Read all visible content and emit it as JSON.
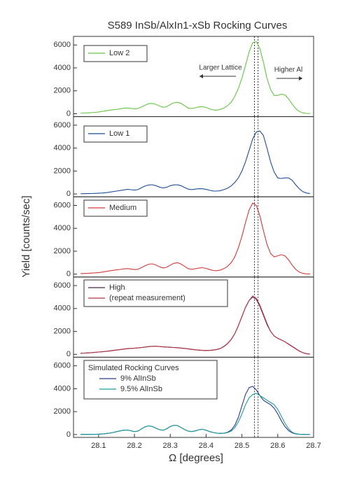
{
  "chart_data": [
    {
      "type": "line",
      "title": "S589 InSb/AlxIn1-xSb Rocking Curves",
      "ylabel": "Yield [counts/sec]",
      "annotations": [
        "Larger Lattice",
        "Higher Al"
      ],
      "xlim": [
        28.03,
        28.7
      ],
      "ylim": [
        -250,
        6750
      ],
      "yticks": [
        0,
        2000,
        4000,
        6000
      ],
      "vlines": [
        28.535,
        28.545
      ],
      "x": [
        28.05,
        28.06,
        28.07,
        28.08,
        28.09,
        28.1,
        28.11,
        28.12,
        28.13,
        28.14,
        28.15,
        28.16,
        28.17,
        28.18,
        28.19,
        28.2,
        28.21,
        28.22,
        28.23,
        28.24,
        28.25,
        28.26,
        28.27,
        28.28,
        28.29,
        28.3,
        28.31,
        28.32,
        28.33,
        28.34,
        28.35,
        28.36,
        28.37,
        28.38,
        28.39,
        28.4,
        28.41,
        28.42,
        28.43,
        28.44,
        28.45,
        28.46,
        28.47,
        28.48,
        28.49,
        28.5,
        28.51,
        28.52,
        28.53,
        28.54,
        28.55,
        28.56,
        28.57,
        28.58,
        28.59,
        28.6,
        28.61,
        28.62,
        28.63,
        28.64,
        28.65,
        28.66,
        28.67,
        28.68,
        28.69
      ],
      "series": [
        {
          "name": "Low 2",
          "color": "#66c447",
          "values": [
            50,
            60,
            80,
            100,
            120,
            150,
            200,
            250,
            300,
            350,
            380,
            420,
            480,
            500,
            470,
            420,
            450,
            600,
            750,
            880,
            900,
            820,
            680,
            560,
            620,
            800,
            950,
            1000,
            900,
            700,
            500,
            450,
            520,
            600,
            620,
            550,
            420,
            330,
            320,
            380,
            500,
            700,
            1000,
            1500,
            2200,
            3100,
            4200,
            5400,
            6200,
            6300,
            5700,
            4500,
            3100,
            2100,
            1600,
            1600,
            1700,
            1650,
            1300,
            850,
            450,
            200,
            80,
            30,
            10
          ]
        }
      ]
    },
    {
      "type": "line",
      "xlim": [
        28.03,
        28.7
      ],
      "ylim": [
        -250,
        6750
      ],
      "yticks": [
        0,
        2000,
        4000,
        6000
      ],
      "vlines": [
        28.535,
        28.545
      ],
      "x": [
        28.05,
        28.06,
        28.07,
        28.08,
        28.09,
        28.1,
        28.11,
        28.12,
        28.13,
        28.14,
        28.15,
        28.16,
        28.17,
        28.18,
        28.19,
        28.2,
        28.21,
        28.22,
        28.23,
        28.24,
        28.25,
        28.26,
        28.27,
        28.28,
        28.29,
        28.3,
        28.31,
        28.32,
        28.33,
        28.34,
        28.35,
        28.36,
        28.37,
        28.38,
        28.39,
        28.4,
        28.41,
        28.42,
        28.43,
        28.44,
        28.45,
        28.46,
        28.47,
        28.48,
        28.49,
        28.5,
        28.51,
        28.52,
        28.53,
        28.54,
        28.55,
        28.56,
        28.57,
        28.58,
        28.59,
        28.6,
        28.61,
        28.62,
        28.63,
        28.64,
        28.65,
        28.66,
        28.67,
        28.68,
        28.69
      ],
      "series": [
        {
          "name": "Low 1",
          "color": "#1f4e96",
          "values": [
            20,
            25,
            30,
            40,
            50,
            60,
            80,
            110,
            150,
            200,
            250,
            300,
            350,
            400,
            370,
            330,
            380,
            550,
            700,
            780,
            800,
            720,
            600,
            520,
            580,
            720,
            790,
            800,
            720,
            560,
            420,
            380,
            420,
            460,
            450,
            400,
            320,
            260,
            250,
            290,
            380,
            500,
            700,
            1000,
            1400,
            2000,
            2800,
            3800,
            4800,
            5400,
            5500,
            5100,
            4000,
            2800,
            1900,
            1400,
            1350,
            1400,
            1400,
            1200,
            800,
            450,
            200,
            80,
            30
          ]
        }
      ]
    },
    {
      "type": "line",
      "xlim": [
        28.03,
        28.7
      ],
      "ylim": [
        -250,
        6750
      ],
      "yticks": [
        0,
        2000,
        4000,
        6000
      ],
      "vlines": [
        28.535,
        28.545
      ],
      "x": [
        28.05,
        28.06,
        28.07,
        28.08,
        28.09,
        28.1,
        28.11,
        28.12,
        28.13,
        28.14,
        28.15,
        28.16,
        28.17,
        28.18,
        28.19,
        28.2,
        28.21,
        28.22,
        28.23,
        28.24,
        28.25,
        28.26,
        28.27,
        28.28,
        28.29,
        28.3,
        28.31,
        28.32,
        28.33,
        28.34,
        28.35,
        28.36,
        28.37,
        28.38,
        28.39,
        28.4,
        28.41,
        28.42,
        28.43,
        28.44,
        28.45,
        28.46,
        28.47,
        28.48,
        28.49,
        28.5,
        28.51,
        28.52,
        28.53,
        28.54,
        28.55,
        28.56,
        28.57,
        28.58,
        28.59,
        28.6,
        28.61,
        28.62,
        28.63,
        28.64,
        28.65,
        28.66,
        28.67,
        28.68,
        28.69
      ],
      "series": [
        {
          "name": "Medium",
          "color": "#d03a3a",
          "values": [
            50,
            60,
            70,
            90,
            110,
            140,
            180,
            230,
            280,
            330,
            370,
            410,
            460,
            480,
            450,
            400,
            430,
            580,
            740,
            870,
            900,
            800,
            650,
            540,
            600,
            790,
            940,
            1000,
            880,
            680,
            480,
            420,
            470,
            540,
            560,
            500,
            400,
            320,
            300,
            360,
            480,
            680,
            1000,
            1500,
            2300,
            3300,
            4500,
            5600,
            6200,
            6000,
            5100,
            3800,
            2600,
            1800,
            1500,
            1600,
            1700,
            1600,
            1250,
            800,
            420,
            180,
            70,
            25,
            10
          ]
        }
      ]
    },
    {
      "type": "line",
      "xlim": [
        28.03,
        28.7
      ],
      "ylim": [
        -250,
        6750
      ],
      "yticks": [
        0,
        2000,
        4000,
        6000
      ],
      "vlines": [
        28.535,
        28.545
      ],
      "x": [
        28.05,
        28.06,
        28.07,
        28.08,
        28.09,
        28.1,
        28.11,
        28.12,
        28.13,
        28.14,
        28.15,
        28.16,
        28.17,
        28.18,
        28.19,
        28.2,
        28.21,
        28.22,
        28.23,
        28.24,
        28.25,
        28.26,
        28.27,
        28.28,
        28.29,
        28.3,
        28.31,
        28.32,
        28.33,
        28.34,
        28.35,
        28.36,
        28.37,
        28.38,
        28.39,
        28.4,
        28.41,
        28.42,
        28.43,
        28.44,
        28.45,
        28.46,
        28.47,
        28.48,
        28.49,
        28.5,
        28.51,
        28.52,
        28.53,
        28.54,
        28.55,
        28.56,
        28.57,
        28.58,
        28.59,
        28.6,
        28.61,
        28.62,
        28.63,
        28.64,
        28.65,
        28.66,
        28.67,
        28.68,
        28.69
      ],
      "series": [
        {
          "name": "High",
          "color": "#4a2848",
          "values": [
            100,
            110,
            130,
            150,
            180,
            200,
            230,
            260,
            300,
            340,
            380,
            420,
            460,
            500,
            520,
            540,
            560,
            600,
            640,
            680,
            700,
            700,
            690,
            660,
            640,
            620,
            600,
            580,
            550,
            520,
            480,
            440,
            400,
            370,
            350,
            340,
            350,
            380,
            430,
            520,
            700,
            950,
            1300,
            1800,
            2500,
            3300,
            4100,
            4700,
            5000,
            4800,
            4200,
            3400,
            2600,
            2000,
            1600,
            1400,
            1250,
            1100,
            900,
            700,
            500,
            300,
            150,
            60,
            20
          ]
        },
        {
          "name": "(repeat measurement)",
          "color": "#b83545",
          "values": [
            90,
            110,
            120,
            150,
            170,
            200,
            220,
            260,
            290,
            330,
            370,
            410,
            450,
            490,
            510,
            530,
            560,
            590,
            630,
            670,
            690,
            700,
            680,
            650,
            630,
            610,
            590,
            570,
            540,
            510,
            470,
            430,
            400,
            360,
            340,
            330,
            340,
            370,
            420,
            510,
            680,
            930,
            1300,
            1800,
            2500,
            3300,
            4100,
            4700,
            5100,
            4900,
            4300,
            3500,
            2700,
            2000,
            1600,
            1400,
            1250,
            1100,
            880,
            680,
            480,
            280,
            140,
            50,
            20
          ]
        }
      ]
    },
    {
      "type": "line",
      "xlabel": "Ω [degrees]",
      "legend_title": "Simulated Rocking Curves",
      "xlim": [
        28.03,
        28.7
      ],
      "ylim": [
        -250,
        6750
      ],
      "yticks": [
        0,
        2000,
        4000,
        6000
      ],
      "vlines": [
        28.535,
        28.545
      ],
      "xticks": [
        28.1,
        28.2,
        28.3,
        28.4,
        28.5,
        28.6,
        28.7
      ],
      "x": [
        28.05,
        28.06,
        28.07,
        28.08,
        28.09,
        28.1,
        28.11,
        28.12,
        28.13,
        28.14,
        28.15,
        28.16,
        28.17,
        28.18,
        28.19,
        28.2,
        28.21,
        28.22,
        28.23,
        28.24,
        28.25,
        28.26,
        28.27,
        28.28,
        28.29,
        28.3,
        28.31,
        28.32,
        28.33,
        28.34,
        28.35,
        28.36,
        28.37,
        28.38,
        28.39,
        28.4,
        28.41,
        28.42,
        28.43,
        28.44,
        28.45,
        28.46,
        28.47,
        28.48,
        28.49,
        28.5,
        28.51,
        28.52,
        28.53,
        28.54,
        28.55,
        28.56,
        28.57,
        28.58,
        28.59,
        28.6,
        28.61,
        28.62,
        28.63,
        28.64,
        28.65,
        28.66,
        28.67,
        28.68,
        28.69
      ],
      "series": [
        {
          "name": "9% AlInSb",
          "color": "#2b3a8c",
          "values": [
            10,
            10,
            10,
            10,
            20,
            30,
            50,
            80,
            120,
            180,
            250,
            320,
            380,
            400,
            330,
            260,
            300,
            500,
            680,
            760,
            700,
            560,
            420,
            380,
            500,
            700,
            800,
            780,
            620,
            440,
            300,
            260,
            320,
            420,
            460,
            380,
            260,
            180,
            120,
            100,
            120,
            200,
            400,
            800,
            1500,
            2500,
            3500,
            4100,
            4200,
            3900,
            3400,
            3000,
            2800,
            2600,
            2300,
            1800,
            1200,
            700,
            350,
            150,
            60,
            20,
            10,
            5,
            0
          ]
        },
        {
          "name": "9.5% AlInSb",
          "color": "#1a9c9a",
          "values": [
            10,
            10,
            10,
            10,
            20,
            30,
            50,
            80,
            120,
            180,
            250,
            320,
            380,
            400,
            330,
            260,
            300,
            500,
            680,
            760,
            700,
            560,
            420,
            380,
            500,
            700,
            800,
            780,
            620,
            440,
            300,
            260,
            320,
            420,
            460,
            380,
            260,
            180,
            120,
            100,
            110,
            170,
            300,
            600,
            1100,
            1800,
            2600,
            3200,
            3500,
            3600,
            3400,
            3200,
            3000,
            2800,
            2600,
            2200,
            1600,
            1000,
            500,
            200,
            80,
            30,
            10,
            5,
            0
          ]
        }
      ]
    }
  ]
}
